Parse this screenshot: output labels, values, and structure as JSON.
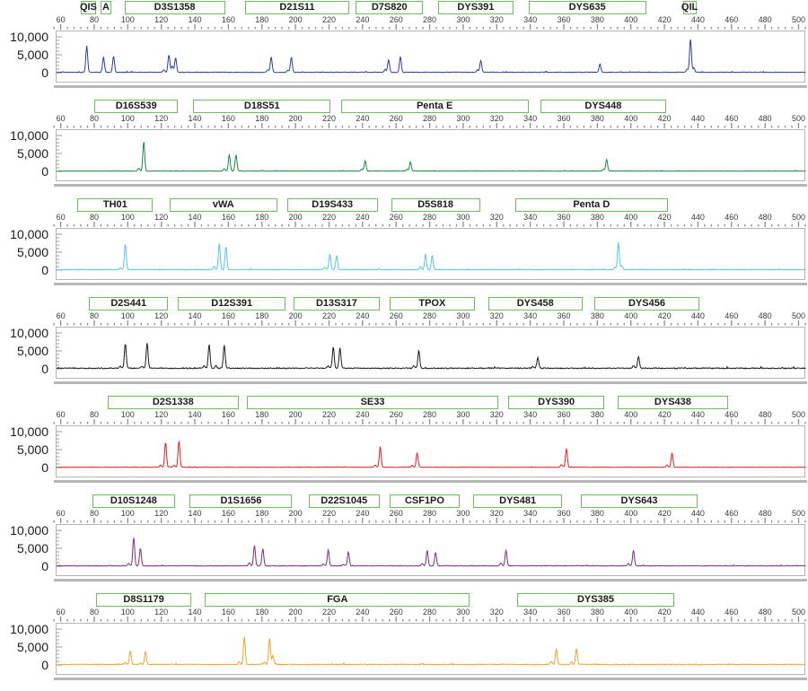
{
  "y_axis": {
    "labels": [
      "10,000",
      "5,000",
      "0"
    ],
    "label_values": [
      10000,
      5000,
      0
    ],
    "max": 10000,
    "minor_tick_step": 1000,
    "major_tick_step": 5000
  },
  "x_axis": {
    "bp_min": 57,
    "bp_max": 504,
    "tick_start": 60,
    "tick_end": 500,
    "tick_step": 20,
    "minor_tick_step": 4
  },
  "colors": {
    "marker_box_border": "#6abf5a",
    "marker_text": "#1a1a1a",
    "ruler_text": "#3a3a3a",
    "tick": "#8c8c8c",
    "plot_frame": "#b4b4b4",
    "under_bar": "#b6b6b6"
  },
  "chart_data": [
    {
      "type": "line",
      "dye": "blue",
      "color": "#2c3d9f",
      "noise": 150,
      "ylim": [
        0,
        10000
      ],
      "markers": [
        {
          "label": "QIS",
          "start": 72,
          "end": 81
        },
        {
          "label": "A",
          "start": 84,
          "end": 90
        },
        {
          "label": "D3S1358",
          "start": 98,
          "end": 158
        },
        {
          "label": "D21S11",
          "start": 170,
          "end": 232
        },
        {
          "label": "D7S820",
          "start": 236,
          "end": 276
        },
        {
          "label": "DYS391",
          "start": 285,
          "end": 330
        },
        {
          "label": "DYS635",
          "start": 339,
          "end": 409
        },
        {
          "label": "QIL",
          "start": 431,
          "end": 439
        }
      ],
      "peaks": [
        [
          75,
          7400
        ],
        [
          85,
          4300
        ],
        [
          91,
          4500
        ],
        [
          121,
          700
        ],
        [
          124,
          4900
        ],
        [
          126,
          1800
        ],
        [
          128,
          4100
        ],
        [
          183,
          700
        ],
        [
          185,
          4300
        ],
        [
          195,
          600
        ],
        [
          197,
          4200
        ],
        [
          253,
          800
        ],
        [
          255,
          3500
        ],
        [
          262,
          4400
        ],
        [
          308,
          700
        ],
        [
          310,
          3300
        ],
        [
          381,
          2300
        ],
        [
          433,
          900
        ],
        [
          435,
          9300
        ],
        [
          437,
          1200
        ]
      ]
    },
    {
      "type": "line",
      "dye": "green",
      "color": "#1a8a3e",
      "noise": 120,
      "ylim": [
        0,
        10000
      ],
      "markers": [
        {
          "label": "D16S539",
          "start": 80,
          "end": 130
        },
        {
          "label": "D18S51",
          "start": 139,
          "end": 221
        },
        {
          "label": "Penta E",
          "start": 227,
          "end": 339
        },
        {
          "label": "DYS448",
          "start": 346,
          "end": 421
        }
      ],
      "peaks": [
        [
          106,
          800
        ],
        [
          109,
          8200
        ],
        [
          157,
          600
        ],
        [
          160,
          4500
        ],
        [
          164,
          4600
        ],
        [
          239,
          500
        ],
        [
          241,
          2800
        ],
        [
          266,
          500
        ],
        [
          268,
          2500
        ],
        [
          383,
          500
        ],
        [
          385,
          3300
        ]
      ]
    },
    {
      "type": "line",
      "dye": "cyan",
      "color": "#53c6e8",
      "noise": 150,
      "ylim": [
        0,
        10000
      ],
      "markers": [
        {
          "label": "TH01",
          "start": 70,
          "end": 115
        },
        {
          "label": "vWA",
          "start": 125,
          "end": 189
        },
        {
          "label": "D19S433",
          "start": 195,
          "end": 249
        },
        {
          "label": "D5S818",
          "start": 257,
          "end": 310
        },
        {
          "label": "Penta D",
          "start": 331,
          "end": 422
        }
      ],
      "peaks": [
        [
          95,
          500
        ],
        [
          98,
          7200
        ],
        [
          151,
          900
        ],
        [
          154,
          7300
        ],
        [
          158,
          6500
        ],
        [
          217,
          700
        ],
        [
          220,
          4300
        ],
        [
          224,
          4000
        ],
        [
          274,
          900
        ],
        [
          277,
          4300
        ],
        [
          281,
          4000
        ],
        [
          390,
          600
        ],
        [
          392,
          7700
        ],
        [
          394,
          1100
        ]
      ]
    },
    {
      "type": "line",
      "dye": "black",
      "color": "#1a1a1a",
      "noise": 260,
      "ylim": [
        0,
        10000
      ],
      "markers": [
        {
          "label": "D2S441",
          "start": 77,
          "end": 124
        },
        {
          "label": "D12S391",
          "start": 130,
          "end": 194
        },
        {
          "label": "D13S317",
          "start": 199,
          "end": 250
        },
        {
          "label": "TPOX",
          "start": 256,
          "end": 307
        },
        {
          "label": "DYS458",
          "start": 315,
          "end": 371
        },
        {
          "label": "DYS456",
          "start": 378,
          "end": 441
        }
      ],
      "peaks": [
        [
          95,
          600
        ],
        [
          98,
          6900
        ],
        [
          108,
          500
        ],
        [
          111,
          7100
        ],
        [
          145,
          800
        ],
        [
          148,
          6600
        ],
        [
          152,
          700
        ],
        [
          157,
          6400
        ],
        [
          219,
          600
        ],
        [
          222,
          5900
        ],
        [
          226,
          5700
        ],
        [
          270,
          700
        ],
        [
          273,
          5000
        ],
        [
          341,
          500
        ],
        [
          344,
          3000
        ],
        [
          401,
          700
        ],
        [
          404,
          3300
        ]
      ]
    },
    {
      "type": "line",
      "dye": "red",
      "color": "#e02022",
      "noise": 110,
      "ylim": [
        0,
        10000
      ],
      "markers": [
        {
          "label": "D2S1338",
          "start": 88,
          "end": 166
        },
        {
          "label": "SE33",
          "start": 171,
          "end": 321
        },
        {
          "label": "DYS390",
          "start": 327,
          "end": 384
        },
        {
          "label": "DYS438",
          "start": 392,
          "end": 458
        }
      ],
      "peaks": [
        [
          119,
          600
        ],
        [
          122,
          6900
        ],
        [
          127,
          500
        ],
        [
          130,
          7300
        ],
        [
          247,
          600
        ],
        [
          250,
          5700
        ],
        [
          269,
          500
        ],
        [
          272,
          4000
        ],
        [
          358,
          700
        ],
        [
          361,
          5200
        ],
        [
          421,
          600
        ],
        [
          424,
          4000
        ]
      ]
    },
    {
      "type": "line",
      "dye": "purple",
      "color": "#7c2d84",
      "noise": 160,
      "ylim": [
        0,
        10000
      ],
      "markers": [
        {
          "label": "D10S1248",
          "start": 79,
          "end": 128
        },
        {
          "label": "D1S1656",
          "start": 137,
          "end": 198
        },
        {
          "label": "D22S1045",
          "start": 208,
          "end": 250
        },
        {
          "label": "CSF1PO",
          "start": 256,
          "end": 298
        },
        {
          "label": "DYS481",
          "start": 306,
          "end": 359
        },
        {
          "label": "DYS643",
          "start": 370,
          "end": 440
        }
      ],
      "peaks": [
        [
          100,
          700
        ],
        [
          103,
          7900
        ],
        [
          107,
          4900
        ],
        [
          172,
          900
        ],
        [
          175,
          5700
        ],
        [
          180,
          4900
        ],
        [
          216,
          500
        ],
        [
          219,
          4500
        ],
        [
          228,
          400
        ],
        [
          231,
          3900
        ],
        [
          275,
          600
        ],
        [
          278,
          4300
        ],
        [
          283,
          3800
        ],
        [
          322,
          800
        ],
        [
          325,
          4400
        ],
        [
          398,
          600
        ],
        [
          401,
          4300
        ]
      ]
    },
    {
      "type": "line",
      "dye": "orange",
      "color": "#f0a230",
      "noise": 210,
      "ylim": [
        0,
        10000
      ],
      "markers": [
        {
          "label": "D8S1179",
          "start": 81,
          "end": 138
        },
        {
          "label": "FGA",
          "start": 146,
          "end": 304
        },
        {
          "label": "DYS385",
          "start": 332,
          "end": 426
        }
      ],
      "peaks": [
        [
          98,
          500
        ],
        [
          101,
          3800
        ],
        [
          107,
          400
        ],
        [
          110,
          3700
        ],
        [
          166,
          800
        ],
        [
          169,
          7800
        ],
        [
          181,
          700
        ],
        [
          184,
          7300
        ],
        [
          186,
          2500
        ],
        [
          352,
          900
        ],
        [
          355,
          4300
        ],
        [
          364,
          700
        ],
        [
          367,
          4500
        ]
      ]
    }
  ]
}
